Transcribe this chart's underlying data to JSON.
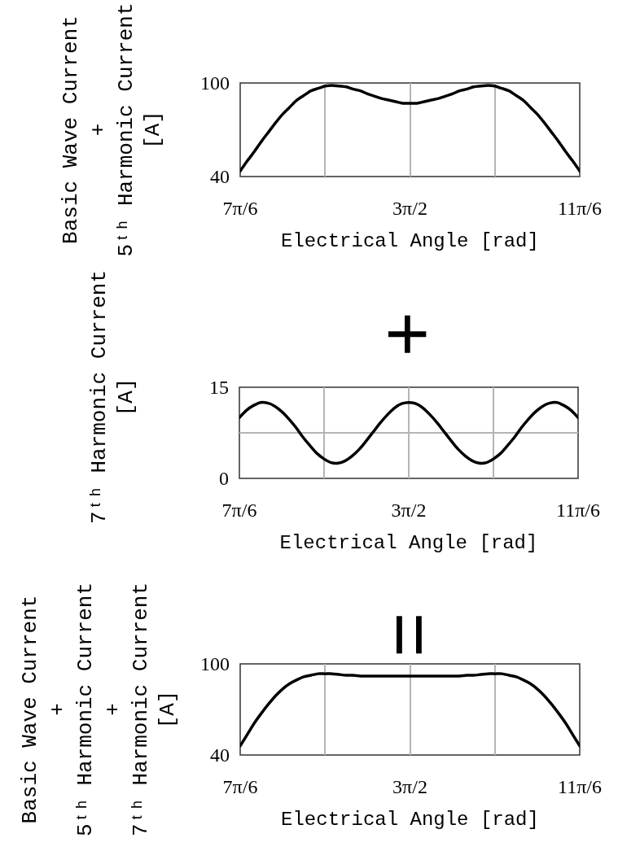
{
  "chart_data": [
    {
      "type": "line",
      "xlabel": "Electrical Angle [rad]",
      "ylabel": "Basic Wave Current\n+\n5ᵗʰ Harmonic Current\n[A]",
      "x": [
        3.6652,
        3.7088,
        3.7525,
        3.7961,
        3.8397,
        3.8834,
        3.927,
        3.9706,
        4.0143,
        4.0579,
        4.1015,
        4.1452,
        4.1888,
        4.2324,
        4.2761,
        4.3197,
        4.3633,
        4.407,
        4.4506,
        4.4942,
        4.5379,
        4.5815,
        4.6251,
        4.6688,
        4.7124,
        4.756,
        4.7997,
        4.8433,
        4.8869,
        4.9306,
        4.9742,
        5.0178,
        5.0615,
        5.1051,
        5.1487,
        5.1924,
        5.236,
        5.2796,
        5.3233,
        5.3669,
        5.4105,
        5.4542,
        5.4978,
        5.5414,
        5.5851,
        5.6287,
        5.6723,
        5.716,
        5.7596
      ],
      "values": [
        43.5,
        50,
        56,
        62.5,
        68.5,
        74.5,
        80,
        84.5,
        89,
        92,
        95,
        96.5,
        98,
        98.5,
        98,
        97.5,
        96,
        95,
        93,
        91.5,
        90,
        89,
        88,
        87,
        87,
        87,
        88,
        89,
        90,
        91.5,
        93,
        95,
        96,
        97.5,
        98,
        98.5,
        98,
        96.5,
        95,
        92,
        89,
        84.5,
        80,
        74.5,
        68.5,
        62.5,
        56,
        50,
        43.5
      ],
      "color": "#000000",
      "xlim": [
        3.6652,
        5.7596
      ],
      "xticks": [
        {
          "value": 3.6652,
          "label": "7π/6"
        },
        {
          "value": 4.1888,
          "label": null
        },
        {
          "value": 4.7124,
          "label": "3π/2"
        },
        {
          "value": 5.236,
          "label": null
        },
        {
          "value": 5.7596,
          "label": "11π/6"
        }
      ],
      "ylim": [
        40,
        100
      ],
      "yticks": [
        40,
        100
      ],
      "grid": "x",
      "legend": false
    },
    {
      "type": "line",
      "xlabel": "Electrical Angle [rad]",
      "ylabel": "7ᵗʰ Harmonic Current\n[A]",
      "annotations": [
        "+"
      ],
      "x": [
        3.6652,
        3.7088,
        3.7525,
        3.7961,
        3.8397,
        3.8834,
        3.927,
        3.9706,
        4.0143,
        4.0579,
        4.1015,
        4.1452,
        4.1888,
        4.2324,
        4.2761,
        4.3197,
        4.3633,
        4.407,
        4.4506,
        4.4942,
        4.5379,
        4.5815,
        4.6251,
        4.6688,
        4.7124,
        4.756,
        4.7997,
        4.8433,
        4.8869,
        4.9306,
        4.9742,
        5.0178,
        5.0615,
        5.1051,
        5.1487,
        5.1924,
        5.236,
        5.2796,
        5.3233,
        5.3669,
        5.4105,
        5.4542,
        5.4978,
        5.5414,
        5.5851,
        5.6287,
        5.6723,
        5.716,
        5.7596
      ],
      "values": [
        10.0,
        11.2,
        12.0,
        12.5,
        12.4,
        11.9,
        11.0,
        9.8,
        8.4,
        6.8,
        5.4,
        4.1,
        3.2,
        2.6,
        2.5,
        2.9,
        3.7,
        4.8,
        6.2,
        7.7,
        9.2,
        10.5,
        11.6,
        12.3,
        12.5,
        12.3,
        11.6,
        10.5,
        9.2,
        7.7,
        6.2,
        4.8,
        3.7,
        2.9,
        2.5,
        2.6,
        3.2,
        4.1,
        5.4,
        6.8,
        8.4,
        9.8,
        11.0,
        11.9,
        12.4,
        12.5,
        12.0,
        11.2,
        10.0
      ],
      "color": "#000000",
      "xlim": [
        3.6652,
        5.7596
      ],
      "xticks": [
        {
          "value": 3.6652,
          "label": "7π/6"
        },
        {
          "value": 4.1888,
          "label": null
        },
        {
          "value": 4.7124,
          "label": "3π/2"
        },
        {
          "value": 5.236,
          "label": null
        },
        {
          "value": 5.7596,
          "label": "11π/6"
        }
      ],
      "ylim": [
        0,
        15
      ],
      "yticks": [
        0,
        {
          "value": 7.5,
          "label": null
        },
        15
      ],
      "grid": true,
      "legend": false
    },
    {
      "type": "line",
      "xlabel": "Electrical Angle [rad]",
      "ylabel": "Basic Wave Current\n+\n5ᵗʰ Harmonic Current\n+\n7ᵗʰ Harmonic Current\n[A]",
      "annotations": [
        "="
      ],
      "x": [
        3.6652,
        3.7088,
        3.7525,
        3.7961,
        3.8397,
        3.8834,
        3.927,
        3.9706,
        4.0143,
        4.0579,
        4.1015,
        4.1452,
        4.1888,
        4.2324,
        4.2761,
        4.3197,
        4.3633,
        4.407,
        4.4506,
        4.4942,
        4.5379,
        4.5815,
        4.6251,
        4.6688,
        4.7124,
        4.756,
        4.7997,
        4.8433,
        4.8869,
        4.9306,
        4.9742,
        5.0178,
        5.0615,
        5.1051,
        5.1487,
        5.1924,
        5.236,
        5.2796,
        5.3233,
        5.3669,
        5.4105,
        5.4542,
        5.4978,
        5.5414,
        5.5851,
        5.6287,
        5.6723,
        5.716,
        5.7596
      ],
      "values": [
        46,
        53.5,
        61,
        67.5,
        73.5,
        79,
        83.5,
        87,
        89.5,
        91.5,
        92.5,
        93.5,
        93.5,
        93.5,
        93,
        92.5,
        92.5,
        92,
        92,
        92,
        92,
        92,
        92,
        92,
        92,
        92,
        92,
        92,
        92,
        92,
        92,
        92,
        92.5,
        92.5,
        93,
        93.5,
        93.5,
        93.5,
        92.5,
        91.5,
        89.5,
        87,
        83.5,
        79,
        73.5,
        67.5,
        61,
        53.5,
        46
      ],
      "color": "#000000",
      "xlim": [
        3.6652,
        5.7596
      ],
      "xticks": [
        {
          "value": 3.6652,
          "label": "7π/6"
        },
        {
          "value": 4.1888,
          "label": null
        },
        {
          "value": 4.7124,
          "label": "3π/2"
        },
        {
          "value": 5.236,
          "label": null
        },
        {
          "value": 5.7596,
          "label": "11π/6"
        }
      ],
      "ylim": [
        40,
        100
      ],
      "yticks": [
        40,
        100
      ],
      "grid": "x",
      "legend": false
    }
  ]
}
